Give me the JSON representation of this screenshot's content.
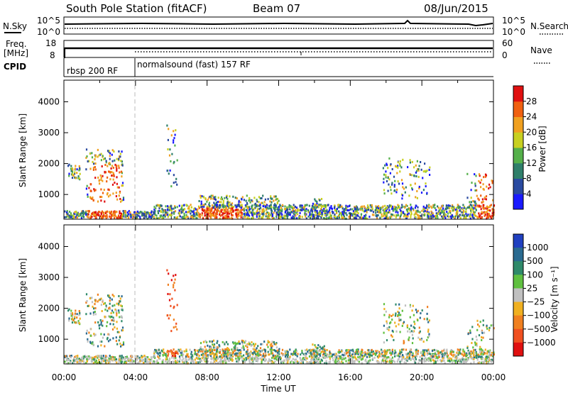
{
  "header": {
    "station": "South Pole Station (fitACF)",
    "beam": "Beam 07",
    "date": "08/Jun/2015"
  },
  "colors": {
    "power_scale": [
      "#1a1aff",
      "#2a4aa0",
      "#2f7f6a",
      "#55b04a",
      "#c8d020",
      "#f0a020",
      "#f06010",
      "#e01010"
    ],
    "velocity_scale": [
      "#2040c0",
      "#2a6a90",
      "#2f8a6a",
      "#60c040",
      "#c0c0c0",
      "#f0b020",
      "#f08020",
      "#f05020",
      "#e01010"
    ],
    "missing": "#b0b0b0"
  },
  "chart_data": [
    {
      "type": "line",
      "name": "noise-panel",
      "left_label": "N.Sky",
      "right_label": "N.Search",
      "left_ticks": [
        "10^5",
        "10^0"
      ],
      "right_ticks": [
        "10^5",
        "10^0"
      ]
    },
    {
      "type": "line",
      "name": "freq-panel",
      "left_label": "Freq.",
      "left_unit": "[MHz]",
      "left_ticks": [
        "18",
        "8"
      ],
      "right_label": "Nave",
      "right_ticks": [
        "60",
        "0"
      ],
      "cpid_label": "CPID",
      "cpid_segments": [
        {
          "label": "rbsp 200 RF",
          "start_hour": 0
        },
        {
          "label": "normalsound (fast) 157 RF",
          "start_hour": 4
        }
      ]
    },
    {
      "type": "heatmap",
      "name": "power",
      "ylabel": "Slant Range [km]",
      "yticks": [
        1000,
        2000,
        3000,
        4000
      ],
      "ylim": [
        200,
        4700
      ],
      "xlim": [
        0,
        24
      ],
      "colorbar_label": "Power [dB]",
      "colorbar_ticks": [
        "4",
        "8",
        "12",
        "16",
        "20",
        "24",
        "28"
      ],
      "colorbar_range": [
        0,
        32
      ]
    },
    {
      "type": "heatmap",
      "name": "velocity",
      "ylabel": "Slant Range [km]",
      "yticks": [
        1000,
        2000,
        3000,
        4000
      ],
      "ylim": [
        200,
        4700
      ],
      "xlim": [
        0,
        24
      ],
      "colorbar_label": "Velocity [m s⁻¹]",
      "colorbar_ticks": [
        "1000",
        "500",
        "100",
        "25",
        "−25",
        "−100",
        "−500",
        "−1000"
      ],
      "xticks": [
        "00:00",
        "04:00",
        "08:00",
        "12:00",
        "16:00",
        "20:00",
        "00:00"
      ],
      "xlabel": "Time UT"
    }
  ]
}
